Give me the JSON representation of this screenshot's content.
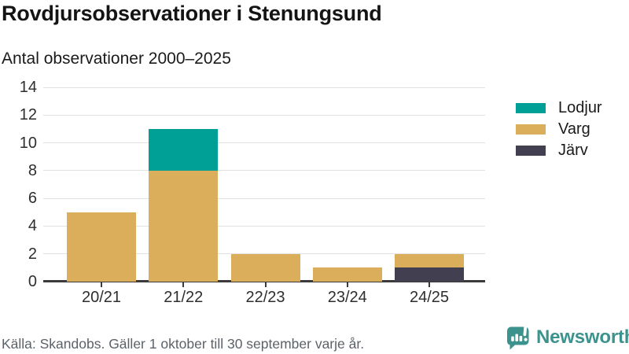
{
  "header": {
    "title": "Rovdjursobservationer i Stenungsund",
    "subtitle": "Antal observationer 2000–2025"
  },
  "chart_data": {
    "type": "bar",
    "stacked": true,
    "title": "Rovdjursobservationer i Stenungsund",
    "subtitle": "Antal observationer 2000–2025",
    "categories": [
      "20/21",
      "21/22",
      "22/23",
      "23/24",
      "24/25"
    ],
    "series": [
      {
        "name": "Lodjur",
        "color": "#00A096",
        "values": [
          0,
          3,
          0,
          0,
          0
        ]
      },
      {
        "name": "Varg",
        "color": "#DBAE5C",
        "values": [
          5,
          8,
          2,
          1,
          1
        ]
      },
      {
        "name": "Järv",
        "color": "#413F50",
        "values": [
          0,
          0,
          0,
          0,
          1
        ]
      }
    ],
    "stack_order_bottom_to_top": [
      "Järv",
      "Varg",
      "Lodjur"
    ],
    "totals": [
      5,
      11,
      2,
      1,
      2
    ],
    "ylim": [
      0,
      14
    ],
    "yticks": [
      0,
      2,
      4,
      6,
      8,
      10,
      12,
      14
    ],
    "xlabel": "",
    "ylabel": "",
    "grid": "horizontal",
    "legend_position": "right"
  },
  "footer": {
    "source": "Källa: Skandobs. Gäller 1 oktober till 30 september varje år.",
    "brand": "Newsworthy"
  },
  "colors": {
    "lodjur": "#00A096",
    "varg": "#DBAE5C",
    "jarv": "#413F50",
    "axis": "#3B3B3B",
    "gridline": "#E1E1E1",
    "brand_teal": "#3C938D"
  }
}
